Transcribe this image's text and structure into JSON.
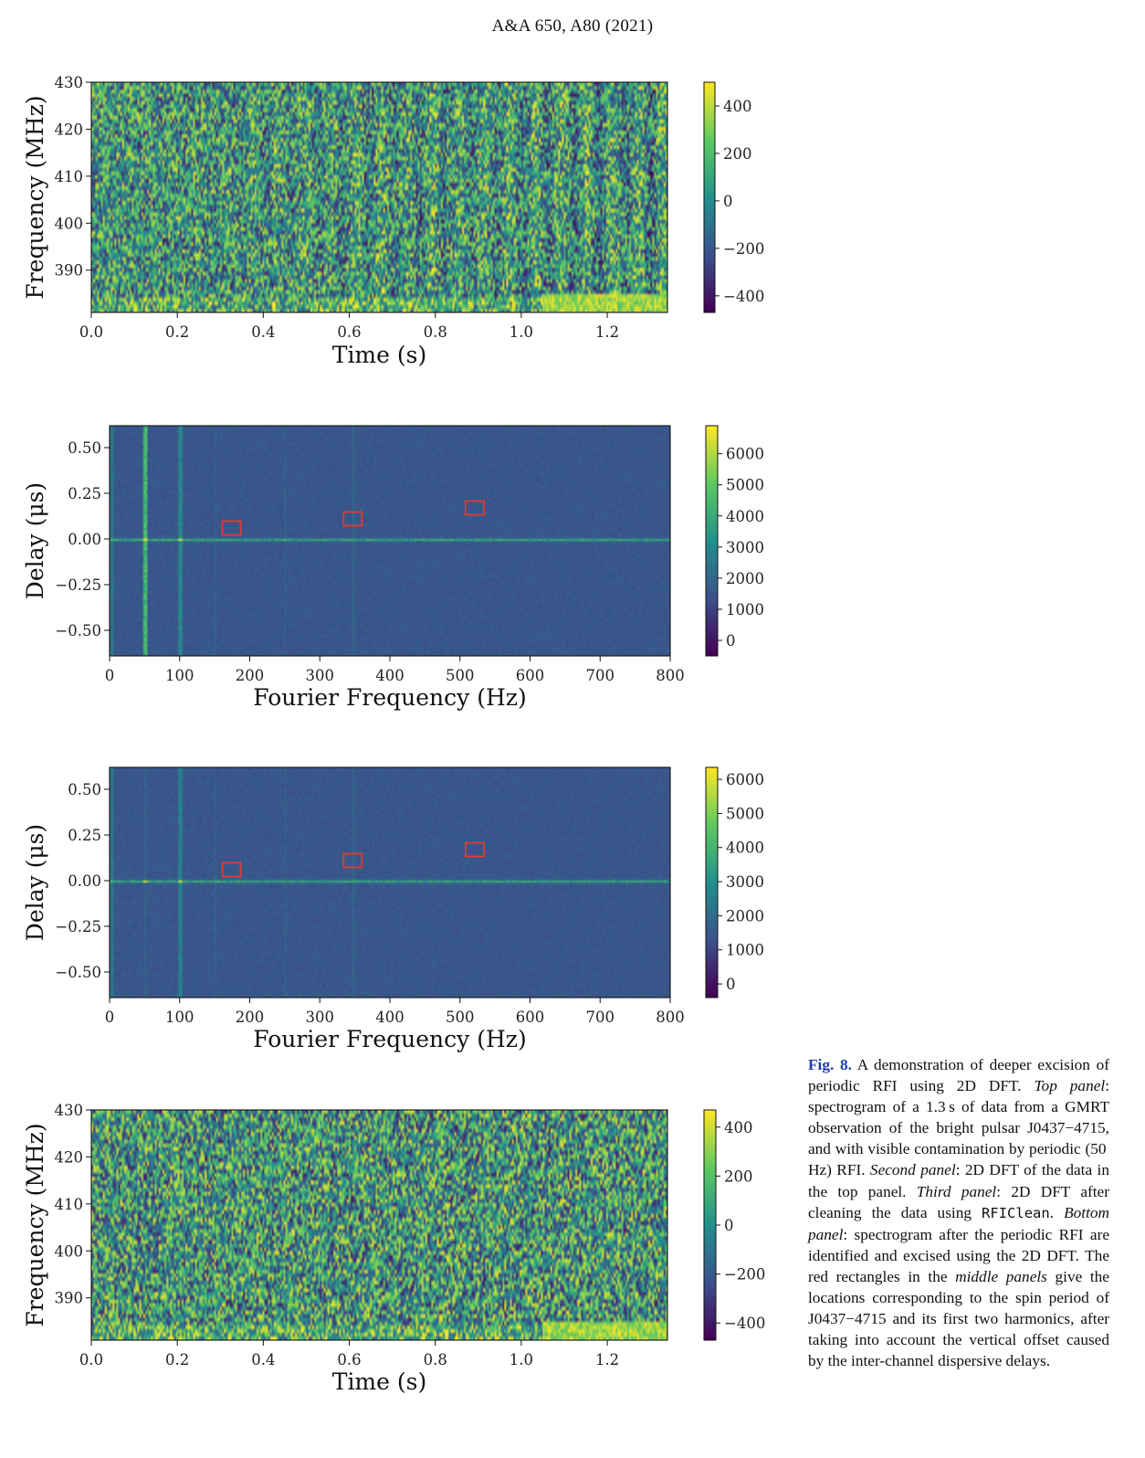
{
  "header": "A&A 650, A80 (2021)",
  "colors": {
    "viridis": [
      "#440154",
      "#3b528b",
      "#21918c",
      "#5ec962",
      "#fde725"
    ],
    "box": "#e53a2d",
    "dft_background": "#3d3c82"
  },
  "chart_data": [
    {
      "id": "top-panel",
      "type": "heatmap",
      "xlabel": "Time (s)",
      "ylabel": "Frequency (MHz)",
      "xlim": [
        0.0,
        1.34
      ],
      "ylim": [
        381,
        430
      ],
      "xticks": [
        "0.0",
        "0.2",
        "0.4",
        "0.6",
        "0.8",
        "1.0",
        "1.2"
      ],
      "xtick_values": [
        0.0,
        0.2,
        0.4,
        0.6,
        0.8,
        1.0,
        1.2
      ],
      "yticks": [
        "430",
        "420",
        "410",
        "400",
        "390"
      ],
      "ytick_values": [
        430,
        420,
        410,
        400,
        390
      ],
      "colorbar": {
        "range": [
          -470,
          500
        ],
        "ticks": [
          "400",
          "200",
          "0",
          "−200",
          "−400"
        ],
        "tick_values": [
          400,
          200,
          0,
          -200,
          -400
        ]
      }
    },
    {
      "id": "second-panel",
      "type": "heatmap",
      "xlabel": "Fourier Frequency (Hz)",
      "ylabel": "Delay (μs)",
      "xlim": [
        0,
        800
      ],
      "ylim": [
        -0.64,
        0.62
      ],
      "xticks": [
        "0",
        "100",
        "200",
        "300",
        "400",
        "500",
        "600",
        "700",
        "800"
      ],
      "xtick_values": [
        0,
        100,
        200,
        300,
        400,
        500,
        600,
        700,
        800
      ],
      "yticks": [
        "0.50",
        "0.25",
        "0.00",
        "−0.25",
        "−0.50"
      ],
      "ytick_values": [
        0.5,
        0.25,
        0,
        -0.25,
        -0.5
      ],
      "colorbar": {
        "range": [
          -500,
          6900
        ],
        "ticks": [
          "6000",
          "5000",
          "4000",
          "3000",
          "2000",
          "1000",
          "0"
        ],
        "tick_values": [
          6000,
          5000,
          4000,
          3000,
          2000,
          1000,
          0
        ]
      },
      "boxes": [
        {
          "x": 174,
          "y": 0.06
        },
        {
          "x": 347,
          "y": 0.11
        },
        {
          "x": 521,
          "y": 0.17
        }
      ]
    },
    {
      "id": "third-panel",
      "type": "heatmap",
      "xlabel": "Fourier Frequency (Hz)",
      "ylabel": "Delay (μs)",
      "xlim": [
        0,
        800
      ],
      "ylim": [
        -0.64,
        0.62
      ],
      "xticks": [
        "0",
        "100",
        "200",
        "300",
        "400",
        "500",
        "600",
        "700",
        "800"
      ],
      "xtick_values": [
        0,
        100,
        200,
        300,
        400,
        500,
        600,
        700,
        800
      ],
      "yticks": [
        "0.50",
        "0.25",
        "0.00",
        "−0.25",
        "−0.50"
      ],
      "ytick_values": [
        0.5,
        0.25,
        0,
        -0.25,
        -0.5
      ],
      "colorbar": {
        "range": [
          -400,
          6350
        ],
        "ticks": [
          "6000",
          "5000",
          "4000",
          "3000",
          "2000",
          "1000",
          "0"
        ],
        "tick_values": [
          6000,
          5000,
          4000,
          3000,
          2000,
          1000,
          0
        ]
      },
      "boxes": [
        {
          "x": 174,
          "y": 0.06
        },
        {
          "x": 347,
          "y": 0.11
        },
        {
          "x": 521,
          "y": 0.17
        }
      ]
    },
    {
      "id": "bottom-panel",
      "type": "heatmap",
      "xlabel": "Time (s)",
      "ylabel": "Frequency (MHz)",
      "xlim": [
        0.0,
        1.34
      ],
      "ylim": [
        381,
        430
      ],
      "xticks": [
        "0.0",
        "0.2",
        "0.4",
        "0.6",
        "0.8",
        "1.0",
        "1.2"
      ],
      "xtick_values": [
        0.0,
        0.2,
        0.4,
        0.6,
        0.8,
        1.0,
        1.2
      ],
      "yticks": [
        "430",
        "420",
        "410",
        "400",
        "390"
      ],
      "ytick_values": [
        430,
        420,
        410,
        400,
        390
      ],
      "colorbar": {
        "range": [
          -470,
          470
        ],
        "ticks": [
          "400",
          "200",
          "0",
          "−200",
          "−400"
        ],
        "tick_values": [
          400,
          200,
          0,
          -200,
          -400
        ]
      }
    }
  ],
  "caption": {
    "fig_label": "Fig. 8.",
    "t1": " A demonstration of deeper excision of periodic RFI using 2D DFT. ",
    "top_panel": "Top panel",
    "t2": ": spectrogram of a 1.3 s of data from a GMRT observation of the bright pulsar J0437−4715, and with visible contamination by periodic (50 Hz) RFI. ",
    "second_panel": "Second panel",
    "t3": ": 2D DFT of the data in the top panel. ",
    "third_panel": "Third panel",
    "t4": ": 2D DFT after cleaning the data using ",
    "code": "RFIClean",
    "t5": ". ",
    "bottom_panel": "Bottom panel",
    "t6": ": spectrogram after the periodic RFI are identified and excised using the 2D DFT. The red rectangles in the ",
    "middle_panels": "middle panels",
    "t7": " give the locations corresponding to the spin period of J0437−4715 and its first two harmonics, after taking into account the vertical offset caused by the inter-channel dispersive delays."
  }
}
